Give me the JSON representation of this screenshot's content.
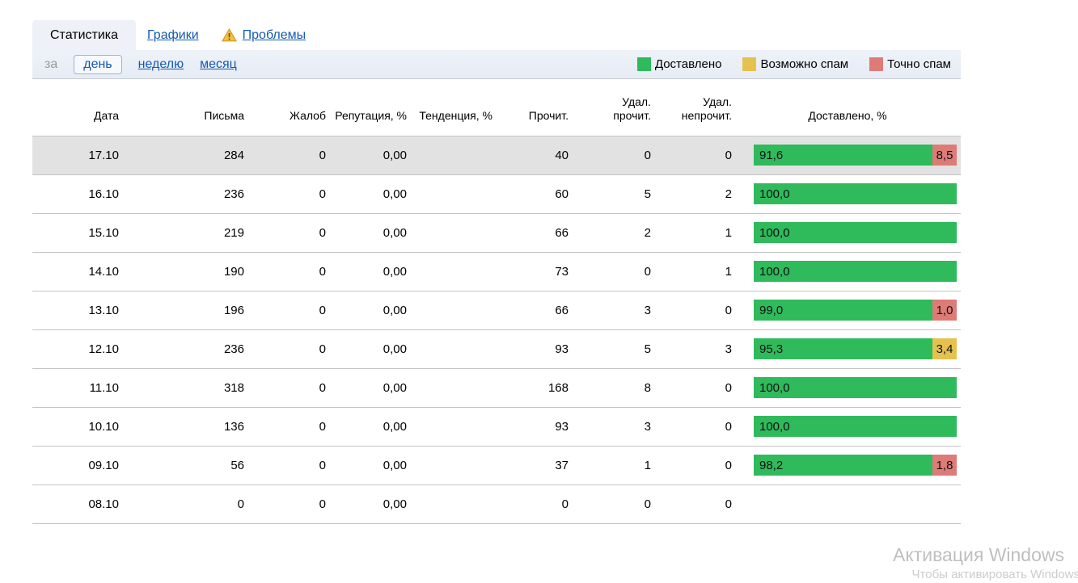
{
  "tabs": [
    {
      "label": "Статистика",
      "active": true
    },
    {
      "label": "Графики",
      "active": false
    },
    {
      "label": "Проблемы",
      "active": false,
      "warning": true
    }
  ],
  "period": {
    "prefix": "за",
    "options": [
      {
        "label": "день",
        "selected": true
      },
      {
        "label": "неделю",
        "selected": false
      },
      {
        "label": "месяц",
        "selected": false
      }
    ]
  },
  "legend": [
    {
      "label": "Доставлено",
      "color": "#2fba5c"
    },
    {
      "label": "Возможно спам",
      "color": "#e5c24d"
    },
    {
      "label": "Точно спам",
      "color": "#de7b76"
    }
  ],
  "colors": {
    "delivered": "#2fba5c",
    "maybe_spam": "#e5c24d",
    "exact_spam": "#de7b76",
    "highlight_row": "#e2e2e2",
    "link": "#1459b3"
  },
  "table": {
    "columns": [
      "Дата",
      "Письма",
      "Жалоб",
      "Репутация, %",
      "Тенденция, %",
      "Прочит.",
      "Удал.\nпрочит.",
      "Удал.\nнепрочит.",
      "Доставлено, %"
    ],
    "rows": [
      {
        "date": "17.10",
        "letters": "284",
        "complaints": "0",
        "reputation": "0,00",
        "trend": "",
        "read": "40",
        "deleted_read": "0",
        "deleted_unread": "0",
        "delivered_label": "91,6",
        "delivered_value": 91.6,
        "maybe_spam_label": "",
        "maybe_spam_value": 0,
        "spam_label": "8,5",
        "spam_value": 8.5,
        "highlight": true
      },
      {
        "date": "16.10",
        "letters": "236",
        "complaints": "0",
        "reputation": "0,00",
        "trend": "",
        "read": "60",
        "deleted_read": "5",
        "deleted_unread": "2",
        "delivered_label": "100,0",
        "delivered_value": 100,
        "maybe_spam_label": "",
        "maybe_spam_value": 0,
        "spam_label": "",
        "spam_value": 0,
        "highlight": false
      },
      {
        "date": "15.10",
        "letters": "219",
        "complaints": "0",
        "reputation": "0,00",
        "trend": "",
        "read": "66",
        "deleted_read": "2",
        "deleted_unread": "1",
        "delivered_label": "100,0",
        "delivered_value": 100,
        "maybe_spam_label": "",
        "maybe_spam_value": 0,
        "spam_label": "",
        "spam_value": 0,
        "highlight": false
      },
      {
        "date": "14.10",
        "letters": "190",
        "complaints": "0",
        "reputation": "0,00",
        "trend": "",
        "read": "73",
        "deleted_read": "0",
        "deleted_unread": "1",
        "delivered_label": "100,0",
        "delivered_value": 100,
        "maybe_spam_label": "",
        "maybe_spam_value": 0,
        "spam_label": "",
        "spam_value": 0,
        "highlight": false
      },
      {
        "date": "13.10",
        "letters": "196",
        "complaints": "0",
        "reputation": "0,00",
        "trend": "",
        "read": "66",
        "deleted_read": "3",
        "deleted_unread": "0",
        "delivered_label": "99,0",
        "delivered_value": 99.0,
        "maybe_spam_label": "",
        "maybe_spam_value": 0,
        "spam_label": "1,0",
        "spam_value": 1.0,
        "highlight": false
      },
      {
        "date": "12.10",
        "letters": "236",
        "complaints": "0",
        "reputation": "0,00",
        "trend": "",
        "read": "93",
        "deleted_read": "5",
        "deleted_unread": "3",
        "delivered_label": "95,3",
        "delivered_value": 95.3,
        "maybe_spam_label": "3,4",
        "maybe_spam_value": 3.4,
        "spam_label": "",
        "spam_value": 0,
        "highlight": false
      },
      {
        "date": "11.10",
        "letters": "318",
        "complaints": "0",
        "reputation": "0,00",
        "trend": "",
        "read": "168",
        "deleted_read": "8",
        "deleted_unread": "0",
        "delivered_label": "100,0",
        "delivered_value": 100,
        "maybe_spam_label": "",
        "maybe_spam_value": 0,
        "spam_label": "",
        "spam_value": 0,
        "highlight": false
      },
      {
        "date": "10.10",
        "letters": "136",
        "complaints": "0",
        "reputation": "0,00",
        "trend": "",
        "read": "93",
        "deleted_read": "3",
        "deleted_unread": "0",
        "delivered_label": "100,0",
        "delivered_value": 100,
        "maybe_spam_label": "",
        "maybe_spam_value": 0,
        "spam_label": "",
        "spam_value": 0,
        "highlight": false
      },
      {
        "date": "09.10",
        "letters": "56",
        "complaints": "0",
        "reputation": "0,00",
        "trend": "",
        "read": "37",
        "deleted_read": "1",
        "deleted_unread": "0",
        "delivered_label": "98,2",
        "delivered_value": 98.2,
        "maybe_spam_label": "",
        "maybe_spam_value": 0,
        "spam_label": "1,8",
        "spam_value": 1.8,
        "highlight": false
      },
      {
        "date": "08.10",
        "letters": "0",
        "complaints": "0",
        "reputation": "0,00",
        "trend": "",
        "read": "0",
        "deleted_read": "0",
        "deleted_unread": "0",
        "delivered_label": "",
        "delivered_value": 0,
        "maybe_spam_label": "",
        "maybe_spam_value": 0,
        "spam_label": "",
        "spam_value": 0,
        "highlight": false
      }
    ]
  },
  "watermark": {
    "title": "Активация Windows",
    "subtitle": "Чтобы активировать Windows"
  }
}
